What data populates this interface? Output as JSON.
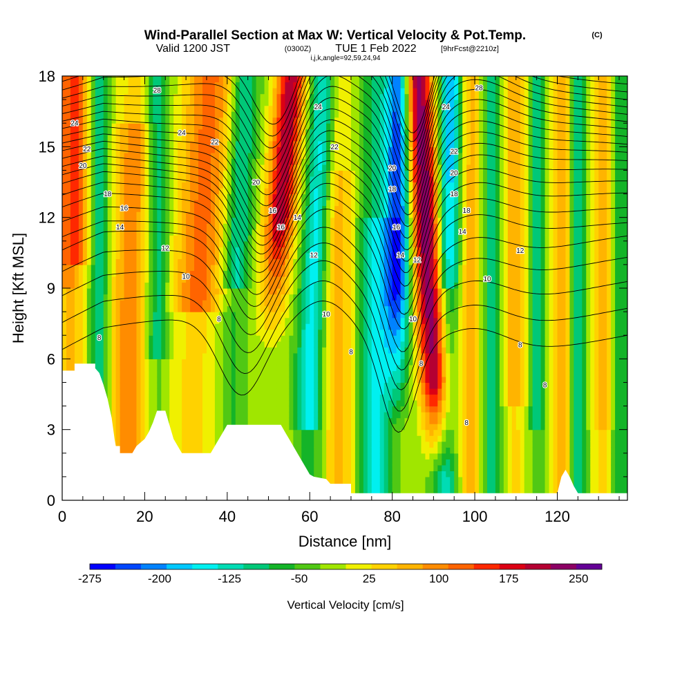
{
  "title": {
    "main": "Wind-Parallel Section at Max W: Vertical Velocity & Pot.Temp.",
    "copyright": "(C)",
    "valid_prefix": "Valid 1200 JST",
    "valid_utc": "(0300Z)",
    "valid_date": "TUE 1 Feb 2022",
    "forecast": "[9hrFcst@2210z]",
    "indices": "i,j,k,angle=92,59,24,94"
  },
  "colors": {
    "scale": [
      "#0000ff",
      "#0046ff",
      "#0082ff",
      "#00c8ff",
      "#00f0f0",
      "#00dcb4",
      "#00c878",
      "#14b428",
      "#50c814",
      "#a0e600",
      "#f0f000",
      "#ffd200",
      "#ffb400",
      "#ff8c00",
      "#ff6400",
      "#ff2800",
      "#dc0014",
      "#b40032",
      "#8c0064",
      "#640096"
    ],
    "terrain": "#ffffff",
    "contour": "#000000"
  },
  "chart_data": {
    "type": "heatmap",
    "xlabel": "Distance [nm]",
    "ylabel": "Height [Kft MSL]",
    "xlim": [
      0,
      137
    ],
    "ylim": [
      0,
      18
    ],
    "x_ticks": [
      "0",
      "20",
      "40",
      "60",
      "80",
      "100",
      "120"
    ],
    "y_ticks": [
      "0",
      "3",
      "6",
      "9",
      "12",
      "15",
      "18"
    ],
    "colorbar": {
      "label": "Vertical Velocity [cm/s]",
      "min": -275,
      "max": 275,
      "step": 25,
      "tick_labels": [
        "-275",
        "-200",
        "-125",
        "-50",
        "25",
        "100",
        "175",
        "250"
      ]
    },
    "theta_contour_labels": [
      {
        "text": "28",
        "x": 23,
        "y": 17.4
      },
      {
        "text": "28",
        "x": 101,
        "y": 17.5
      },
      {
        "text": "24",
        "x": 3,
        "y": 16.0
      },
      {
        "text": "24",
        "x": 29,
        "y": 15.6
      },
      {
        "text": "24",
        "x": 62,
        "y": 16.7
      },
      {
        "text": "24",
        "x": 93,
        "y": 16.7
      },
      {
        "text": "22",
        "x": 6,
        "y": 14.9
      },
      {
        "text": "22",
        "x": 37,
        "y": 15.2
      },
      {
        "text": "22",
        "x": 66,
        "y": 15.0
      },
      {
        "text": "22",
        "x": 95,
        "y": 14.8
      },
      {
        "text": "20",
        "x": 5,
        "y": 14.2
      },
      {
        "text": "20",
        "x": 47,
        "y": 13.5
      },
      {
        "text": "20",
        "x": 80,
        "y": 14.1
      },
      {
        "text": "20",
        "x": 95,
        "y": 13.9
      },
      {
        "text": "18",
        "x": 11,
        "y": 13.0
      },
      {
        "text": "18",
        "x": 80,
        "y": 13.2
      },
      {
        "text": "18",
        "x": 95,
        "y": 13.0
      },
      {
        "text": "18",
        "x": 98,
        "y": 12.3
      },
      {
        "text": "16",
        "x": 15,
        "y": 12.4
      },
      {
        "text": "16",
        "x": 51,
        "y": 12.3
      },
      {
        "text": "16",
        "x": 81,
        "y": 11.6
      },
      {
        "text": "16",
        "x": 53,
        "y": 11.6
      },
      {
        "text": "14",
        "x": 14,
        "y": 11.6
      },
      {
        "text": "14",
        "x": 57,
        "y": 12.0
      },
      {
        "text": "14",
        "x": 82,
        "y": 10.4
      },
      {
        "text": "14",
        "x": 97,
        "y": 11.4
      },
      {
        "text": "12",
        "x": 25,
        "y": 10.7
      },
      {
        "text": "12",
        "x": 61,
        "y": 10.4
      },
      {
        "text": "12",
        "x": 86,
        "y": 10.2
      },
      {
        "text": "12",
        "x": 111,
        "y": 10.6
      },
      {
        "text": "10",
        "x": 30,
        "y": 9.5
      },
      {
        "text": "10",
        "x": 64,
        "y": 7.9
      },
      {
        "text": "10",
        "x": 85,
        "y": 7.7
      },
      {
        "text": "10",
        "x": 103,
        "y": 9.4
      },
      {
        "text": "8",
        "x": 9,
        "y": 6.9
      },
      {
        "text": "8",
        "x": 38,
        "y": 7.7
      },
      {
        "text": "8",
        "x": 70,
        "y": 6.3
      },
      {
        "text": "8",
        "x": 111,
        "y": 6.6
      },
      {
        "text": "8",
        "x": 87,
        "y": 5.8
      },
      {
        "text": "8",
        "x": 117,
        "y": 4.9
      },
      {
        "text": "8",
        "x": 98,
        "y": 3.3
      }
    ]
  }
}
